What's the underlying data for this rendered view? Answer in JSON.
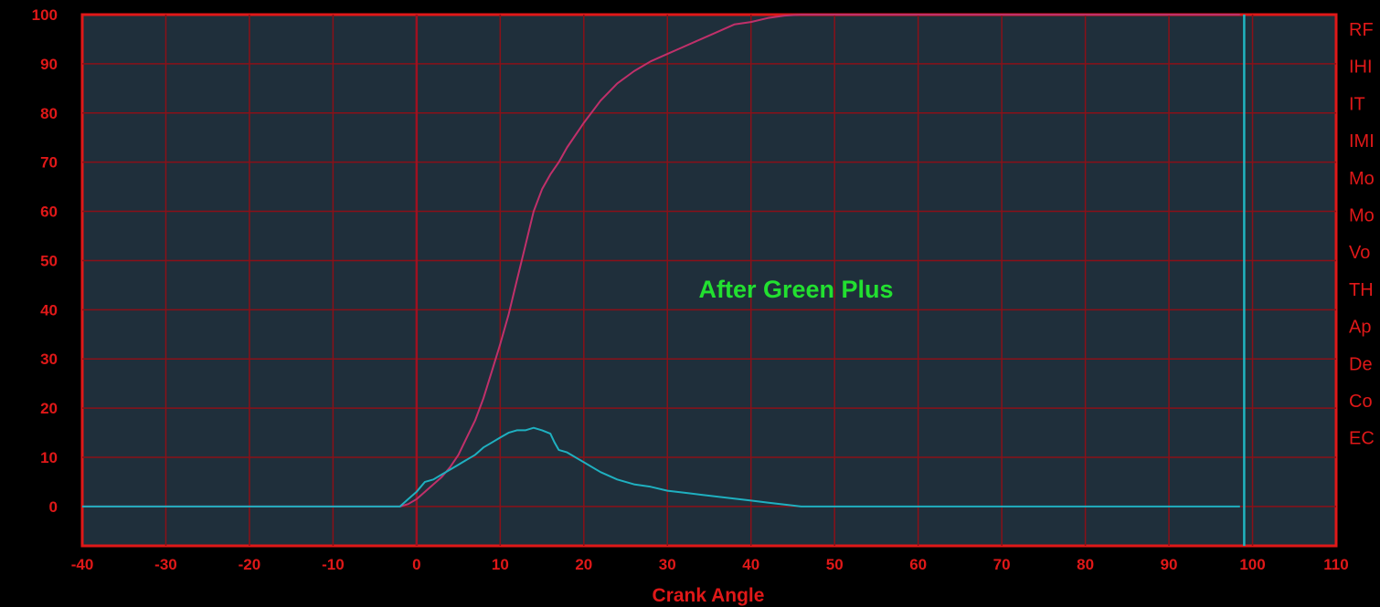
{
  "chart_data": {
    "type": "line",
    "xlabel": "Crank Angle",
    "ylabel": "",
    "annotation": "After Green Plus",
    "xlim": [
      -40,
      110
    ],
    "ylim": [
      -8,
      100
    ],
    "x_ticks": [
      "-40",
      "-30",
      "-20",
      "-10",
      "0",
      "10",
      "20",
      "30",
      "40",
      "50",
      "60",
      "70",
      "80",
      "90",
      "100",
      "110"
    ],
    "y_ticks": [
      "100",
      "90",
      "80",
      "70",
      "60",
      "50",
      "40",
      "30",
      "20",
      "10",
      "0"
    ],
    "right_labels": [
      "RF",
      "IHI",
      "IT",
      "IMI",
      "Mo",
      "Mo",
      "Vo",
      "TH",
      "Ap",
      "De",
      "Co",
      "EC"
    ],
    "vertical_markers": [
      {
        "x": 0,
        "color": "#a01020"
      },
      {
        "x": 99,
        "color": "#20b5c0"
      }
    ],
    "series": [
      {
        "color": "#c0306a",
        "x": [
          -40,
          -2,
          -1,
          0,
          1,
          2,
          3,
          4,
          5,
          6,
          7,
          8,
          9,
          10,
          11,
          12,
          13,
          14,
          15,
          16,
          17,
          18,
          19,
          20,
          22,
          24,
          26,
          28,
          30,
          32,
          34,
          36,
          38,
          40,
          42,
          44,
          46,
          98.5
        ],
        "y": [
          0,
          0,
          0.5,
          1.5,
          3,
          4.5,
          6,
          8,
          10.5,
          14,
          17.5,
          22,
          27.5,
          33,
          39,
          46,
          53,
          60,
          64.5,
          67.5,
          70,
          73,
          75.5,
          78,
          82.5,
          86,
          88.5,
          90.5,
          92,
          93.5,
          95,
          96.5,
          98,
          98.5,
          99.3,
          99.8,
          100,
          100
        ]
      },
      {
        "color": "#1fb0c0",
        "x": [
          -40,
          -2,
          -1,
          0,
          0.5,
          1,
          2,
          3,
          4,
          5,
          6,
          7,
          8,
          9,
          10,
          11,
          12,
          13,
          14,
          15,
          16,
          16.5,
          17,
          18,
          20,
          22,
          24,
          26,
          28,
          30,
          32,
          34,
          36,
          38,
          40,
          42,
          44,
          46,
          48,
          98.5
        ],
        "y": [
          0,
          0,
          1.5,
          3,
          4,
          5,
          5.5,
          6.5,
          7.5,
          8.5,
          9.5,
          10.5,
          12,
          13,
          14,
          15,
          15.5,
          15.5,
          16,
          15.5,
          14.8,
          13,
          11.5,
          11,
          9,
          7,
          5.5,
          4.5,
          4,
          3.2,
          2.8,
          2.4,
          2,
          1.6,
          1.2,
          0.8,
          0.4,
          0,
          0,
          0
        ]
      }
    ]
  }
}
